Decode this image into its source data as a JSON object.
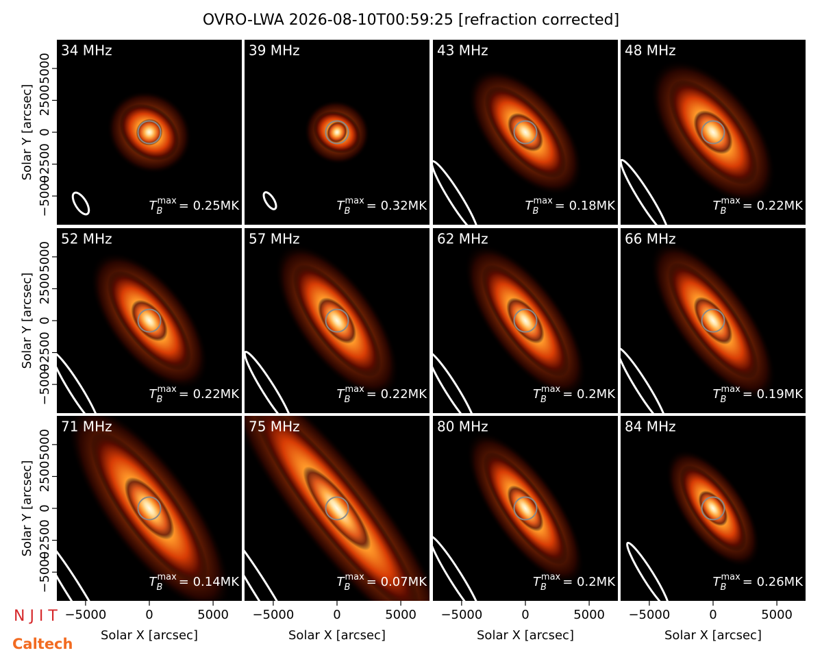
{
  "chart_data": {
    "type": "image-grid",
    "title": "OVRO-LWA 2026-08-10T00:59:25 [refraction corrected]",
    "xlabel": "Solar X [arcsec]",
    "ylabel": "Solar Y [arcsec]",
    "xlim": [
      -7250,
      7250
    ],
    "ylim": [
      -7250,
      7250
    ],
    "xticks": [
      {
        "value": -5000,
        "label": "−5000"
      },
      0,
      5000
    ],
    "yticks": [
      {
        "value": -5000,
        "label": "−5000"
      },
      {
        "value": -2500,
        "label": "−2500"
      },
      0,
      2500,
      5000
    ],
    "tb_symbol": {
      "base": "T",
      "sub": "B",
      "sup": "max"
    },
    "panels": [
      {
        "label": "34 MHz",
        "tb_max": "= 0.25MK"
      },
      {
        "label": "39 MHz",
        "tb_max": "= 0.32MK"
      },
      {
        "label": "43 MHz",
        "tb_max": "= 0.18MK"
      },
      {
        "label": "48 MHz",
        "tb_max": "= 0.22MK"
      },
      {
        "label": "52 MHz",
        "tb_max": "= 0.22MK"
      },
      {
        "label": "57 MHz",
        "tb_max": "= 0.22MK"
      },
      {
        "label": "62 MHz",
        "tb_max": "= 0.2MK"
      },
      {
        "label": "66 MHz",
        "tb_max": "= 0.19MK"
      },
      {
        "label": "71 MHz",
        "tb_max": "= 0.14MK"
      },
      {
        "label": "75 MHz",
        "tb_max": "= 0.07MK"
      },
      {
        "label": "80 MHz",
        "tb_max": "= 0.2MK"
      },
      {
        "label": "84 MHz",
        "tb_max": "= 0.26MK"
      }
    ],
    "logos": [
      "N J I T",
      "Caltech"
    ]
  }
}
